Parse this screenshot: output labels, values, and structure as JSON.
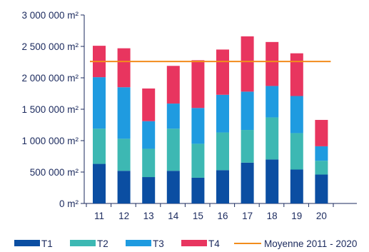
{
  "chart_data": {
    "type": "bar",
    "stacked": true,
    "categories": [
      "11",
      "12",
      "13",
      "14",
      "15",
      "16",
      "17",
      "18",
      "19",
      "20"
    ],
    "series": [
      {
        "name": "T1",
        "color": "#0b4ea2",
        "values": [
          630000,
          520000,
          420000,
          520000,
          410000,
          530000,
          650000,
          700000,
          540000,
          460000
        ]
      },
      {
        "name": "T2",
        "color": "#3db8b3",
        "values": [
          560000,
          510000,
          450000,
          670000,
          540000,
          600000,
          520000,
          670000,
          580000,
          220000
        ]
      },
      {
        "name": "T3",
        "color": "#1f9be0",
        "values": [
          820000,
          820000,
          440000,
          400000,
          570000,
          600000,
          610000,
          500000,
          590000,
          230000
        ]
      },
      {
        "name": "T4",
        "color": "#e8355f",
        "values": [
          500000,
          620000,
          520000,
          600000,
          760000,
          720000,
          880000,
          700000,
          680000,
          420000
        ]
      }
    ],
    "reference_line": {
      "name": "Moyenne 2011 - 2020",
      "value": 2260000,
      "color": "#f28c1c"
    },
    "y_ticks": [
      "0 m²",
      "500 000 m²",
      "1 000 000 m²",
      "1 500 000 m²",
      "2 000 000 m²",
      "2 500 000 m²",
      "3 000 000 m²"
    ],
    "ylim": [
      0,
      3000000
    ],
    "y_step": 500000,
    "title": "",
    "xlabel": "",
    "ylabel": "",
    "grid": false,
    "legend_position": "bottom",
    "axis_color": "#1b2a5e",
    "text_color": "#1b2a5e"
  }
}
